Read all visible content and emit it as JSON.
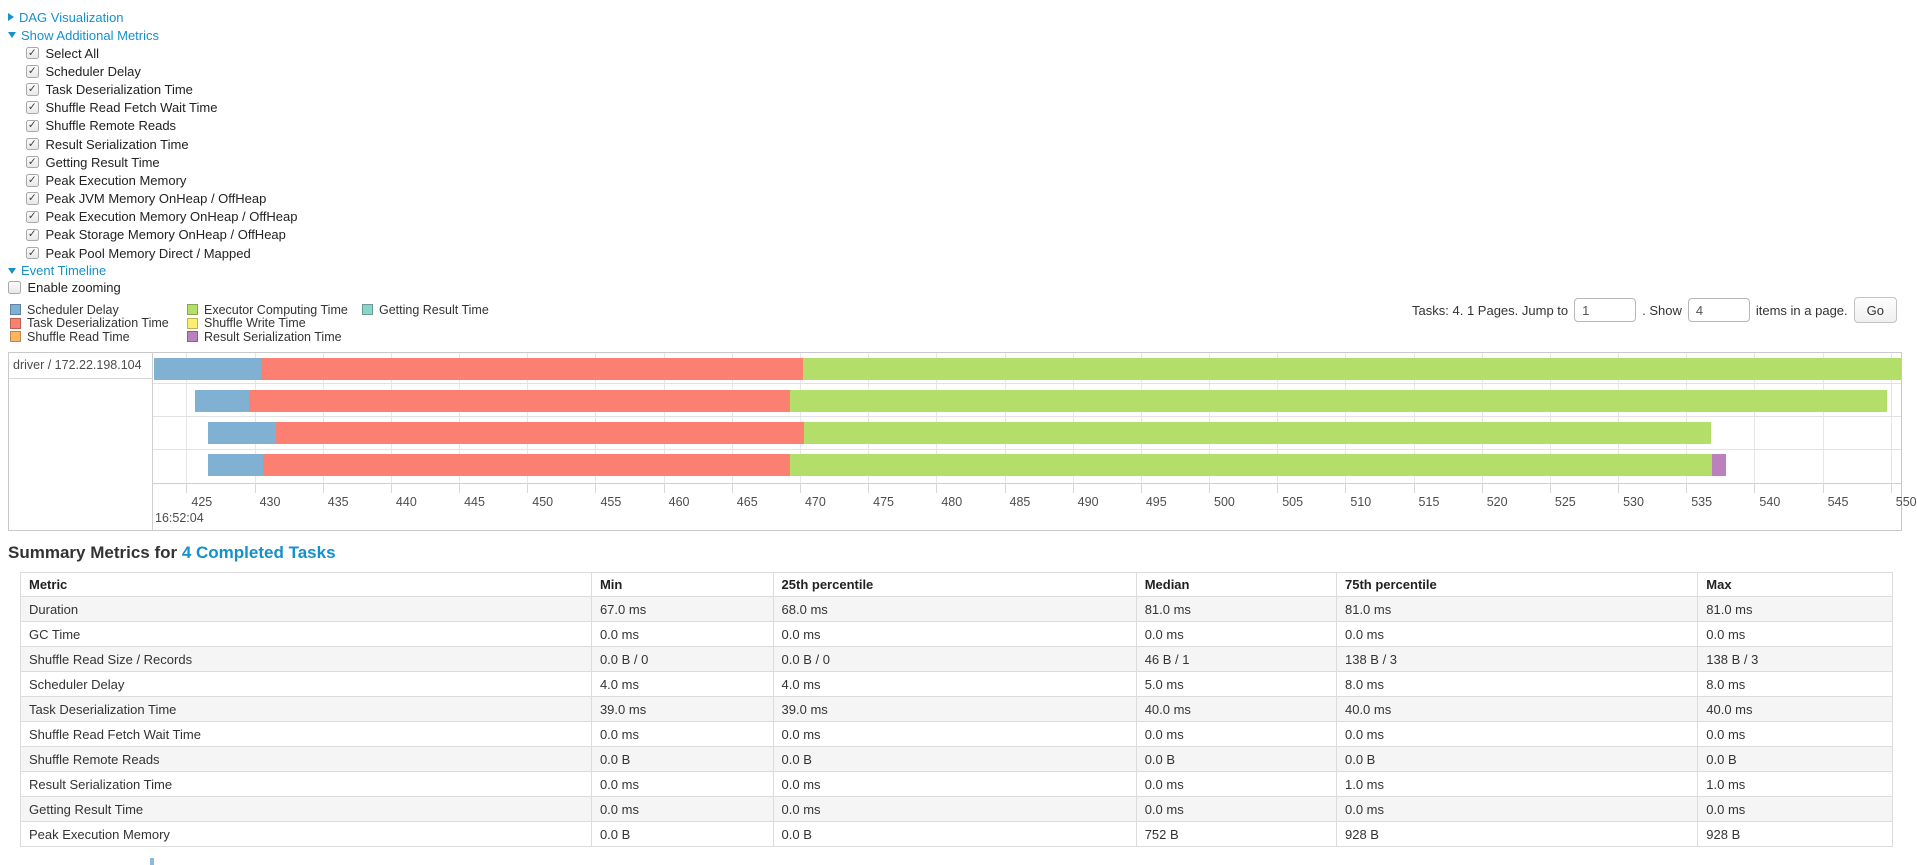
{
  "controls": {
    "dag_label": "DAG Visualization",
    "metrics_label": "Show Additional Metrics",
    "timeline_label": "Event Timeline",
    "enable_zooming_label": "Enable zooming",
    "metrics": [
      {
        "label": "Select All",
        "checked": true
      },
      {
        "label": "Scheduler Delay",
        "checked": true
      },
      {
        "label": "Task Deserialization Time",
        "checked": true
      },
      {
        "label": "Shuffle Read Fetch Wait Time",
        "checked": true
      },
      {
        "label": "Shuffle Remote Reads",
        "checked": true
      },
      {
        "label": "Result Serialization Time",
        "checked": true
      },
      {
        "label": "Getting Result Time",
        "checked": true
      },
      {
        "label": "Peak Execution Memory",
        "checked": true
      },
      {
        "label": "Peak JVM Memory OnHeap / OffHeap",
        "checked": true
      },
      {
        "label": "Peak Execution Memory OnHeap / OffHeap",
        "checked": true
      },
      {
        "label": "Peak Storage Memory OnHeap / OffHeap",
        "checked": true
      },
      {
        "label": "Peak Pool Memory Direct / Mapped",
        "checked": true
      }
    ],
    "enable_zooming_checked": false
  },
  "legend": {
    "columns": [
      [
        {
          "label": "Scheduler Delay",
          "color": "#80B1D3"
        },
        {
          "label": "Task Deserialization Time",
          "color": "#FB8072"
        },
        {
          "label": "Shuffle Read Time",
          "color": "#FDB462"
        }
      ],
      [
        {
          "label": "Executor Computing Time",
          "color": "#B3DE69"
        },
        {
          "label": "Shuffle Write Time",
          "color": "#FFED6F"
        },
        {
          "label": "Result Serialization Time",
          "color": "#BC80BD"
        }
      ],
      [
        {
          "label": "Getting Result Time",
          "color": "#8DD3C7"
        }
      ]
    ]
  },
  "pagination": {
    "tasks_label": "Tasks: 4. 1 Pages. Jump to",
    "jump_value": "1",
    "show_label": ". Show",
    "show_value": "4",
    "items_label": "items in a page.",
    "go_label": "Go"
  },
  "chart_data": {
    "type": "timeline",
    "group": "driver / 172.22.198.104",
    "x_axis": {
      "start_time_label": "16:52:04",
      "units": "ms within 16:52:04",
      "domain": [
        422.55,
        550.75
      ],
      "ticks": [
        425,
        430,
        435,
        440,
        445,
        450,
        455,
        460,
        465,
        470,
        475,
        480,
        485,
        490,
        495,
        500,
        505,
        510,
        515,
        520,
        525,
        530,
        535,
        540,
        545,
        550
      ]
    },
    "tasks": [
      {
        "segments": [
          {
            "metric": "Scheduler Delay",
            "start": 422.6,
            "end": 430.5
          },
          {
            "metric": "Task Deserialization Time",
            "start": 430.5,
            "end": 470.2
          },
          {
            "metric": "Executor Computing Time",
            "start": 470.2,
            "end": 550.75
          }
        ]
      },
      {
        "segments": [
          {
            "metric": "Scheduler Delay",
            "start": 425.6,
            "end": 429.6
          },
          {
            "metric": "Task Deserialization Time",
            "start": 429.6,
            "end": 469.3
          },
          {
            "metric": "Executor Computing Time",
            "start": 469.3,
            "end": 549.7
          }
        ]
      },
      {
        "segments": [
          {
            "metric": "Scheduler Delay",
            "start": 426.6,
            "end": 431.6
          },
          {
            "metric": "Task Deserialization Time",
            "start": 431.6,
            "end": 470.3
          },
          {
            "metric": "Executor Computing Time",
            "start": 470.3,
            "end": 536.8
          }
        ]
      },
      {
        "segments": [
          {
            "metric": "Scheduler Delay",
            "start": 426.6,
            "end": 430.6
          },
          {
            "metric": "Task Deserialization Time",
            "start": 430.6,
            "end": 469.3
          },
          {
            "metric": "Executor Computing Time",
            "start": 469.3,
            "end": 536.9
          },
          {
            "metric": "Result Serialization Time",
            "start": 536.9,
            "end": 537.9
          }
        ]
      }
    ]
  },
  "summary": {
    "heading_prefix": "Summary Metrics for ",
    "tasks_link": "4 Completed Tasks",
    "table": {
      "headers": [
        "Metric",
        "Min",
        "25th percentile",
        "Median",
        "75th percentile",
        "Max"
      ],
      "rows": [
        [
          "Duration",
          "67.0 ms",
          "68.0 ms",
          "81.0 ms",
          "81.0 ms",
          "81.0 ms"
        ],
        [
          "GC Time",
          "0.0 ms",
          "0.0 ms",
          "0.0 ms",
          "0.0 ms",
          "0.0 ms"
        ],
        [
          "Shuffle Read Size / Records",
          "0.0 B / 0",
          "0.0 B / 0",
          "46 B / 1",
          "138 B / 3",
          "138 B / 3"
        ],
        [
          "Scheduler Delay",
          "4.0 ms",
          "4.0 ms",
          "5.0 ms",
          "8.0 ms",
          "8.0 ms"
        ],
        [
          "Task Deserialization Time",
          "39.0 ms",
          "39.0 ms",
          "40.0 ms",
          "40.0 ms",
          "40.0 ms"
        ],
        [
          "Shuffle Read Fetch Wait Time",
          "0.0 ms",
          "0.0 ms",
          "0.0 ms",
          "0.0 ms",
          "0.0 ms"
        ],
        [
          "Shuffle Remote Reads",
          "0.0 B",
          "0.0 B",
          "0.0 B",
          "0.0 B",
          "0.0 B"
        ],
        [
          "Result Serialization Time",
          "0.0 ms",
          "0.0 ms",
          "0.0 ms",
          "1.0 ms",
          "1.0 ms"
        ],
        [
          "Getting Result Time",
          "0.0 ms",
          "0.0 ms",
          "0.0 ms",
          "0.0 ms",
          "0.0 ms"
        ],
        [
          "Peak Execution Memory",
          "0.0 B",
          "0.0 B",
          "752 B",
          "928 B",
          "928 B"
        ]
      ]
    }
  },
  "colors": {
    "link": "#1590cb",
    "axis_text": "#4d4d4d",
    "table_stripe": "#f5f5f5",
    "panel_border": "#c9c9c9"
  }
}
